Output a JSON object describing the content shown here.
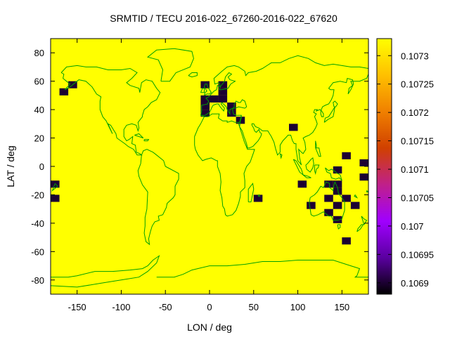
{
  "chart_data": {
    "type": "heatmap",
    "title": "SRMTID / TECU 2016-022_67260-2016-022_67620",
    "xlabel": "LON / deg",
    "ylabel": "LAT / deg",
    "xlim": [
      -180,
      180
    ],
    "ylim": [
      -90,
      90
    ],
    "xticks": [
      -150,
      -100,
      -50,
      0,
      50,
      100,
      150
    ],
    "yticks": [
      80,
      60,
      40,
      20,
      0,
      -20,
      -40,
      -60,
      -80
    ],
    "cell_size_deg": [
      10,
      5
    ],
    "background_value": 0.10733,
    "background_color": "#ffff00",
    "cells": [
      {
        "lon": -175,
        "lat": -12.5,
        "value": 0.1069
      },
      {
        "lon": -175,
        "lat": -22.5,
        "value": 0.1069
      },
      {
        "lon": -165,
        "lat": 52.5,
        "value": 0.1069
      },
      {
        "lon": -155,
        "lat": 57.5,
        "value": 0.1069
      },
      {
        "lon": -5,
        "lat": 57.5,
        "value": 0.1069
      },
      {
        "lon": -5,
        "lat": 47.5,
        "value": 0.1069
      },
      {
        "lon": -5,
        "lat": 42.5,
        "value": 0.1069
      },
      {
        "lon": -5,
        "lat": 37.5,
        "value": 0.1069
      },
      {
        "lon": 5,
        "lat": 47.5,
        "value": 0.1069
      },
      {
        "lon": 15,
        "lat": 57.5,
        "value": 0.1069
      },
      {
        "lon": 15,
        "lat": 52.5,
        "value": 0.1069
      },
      {
        "lon": 15,
        "lat": 47.5,
        "value": 0.1069
      },
      {
        "lon": 25,
        "lat": 42.5,
        "value": 0.1069
      },
      {
        "lon": 25,
        "lat": 37.5,
        "value": 0.1069
      },
      {
        "lon": 35,
        "lat": 32.5,
        "value": 0.1069
      },
      {
        "lon": 55,
        "lat": -22.5,
        "value": 0.1069
      },
      {
        "lon": 95,
        "lat": 27.5,
        "value": 0.1069
      },
      {
        "lon": 105,
        "lat": -12.5,
        "value": 0.1069
      },
      {
        "lon": 115,
        "lat": -27.5,
        "value": 0.1069
      },
      {
        "lon": 135,
        "lat": -12.5,
        "value": 0.1069
      },
      {
        "lon": 135,
        "lat": -22.5,
        "value": 0.1069
      },
      {
        "lon": 135,
        "lat": -32.5,
        "value": 0.1069
      },
      {
        "lon": 145,
        "lat": -2.5,
        "value": 0.1069
      },
      {
        "lon": 145,
        "lat": -12.5,
        "value": 0.1069
      },
      {
        "lon": 145,
        "lat": -17.5,
        "value": 0.1069
      },
      {
        "lon": 145,
        "lat": -27.5,
        "value": 0.1069
      },
      {
        "lon": 145,
        "lat": -37.5,
        "value": 0.1069
      },
      {
        "lon": 155,
        "lat": 7.5,
        "value": 0.1069
      },
      {
        "lon": 155,
        "lat": -22.5,
        "value": 0.1069
      },
      {
        "lon": 155,
        "lat": -52.5,
        "value": 0.1069
      },
      {
        "lon": 165,
        "lat": -27.5,
        "value": 0.1069
      },
      {
        "lon": 175,
        "lat": 2.5,
        "value": 0.1069
      },
      {
        "lon": 175,
        "lat": -7.5,
        "value": 0.1069
      }
    ],
    "colorbar": {
      "range": [
        0.10688,
        0.10733
      ],
      "ticks": [
        "0.1073",
        "0.10725",
        "0.1072",
        "0.10715",
        "0.1071",
        "0.10705",
        "0.107",
        "0.10695",
        "0.1069"
      ],
      "colormap": [
        "#000000",
        "#5a00a0",
        "#a000ff",
        "#c0208a",
        "#d04000",
        "#f08000",
        "#ffc000",
        "#ffff00"
      ]
    },
    "overlay": "coastlines",
    "coastline_color": "#00a000",
    "grid": false
  }
}
